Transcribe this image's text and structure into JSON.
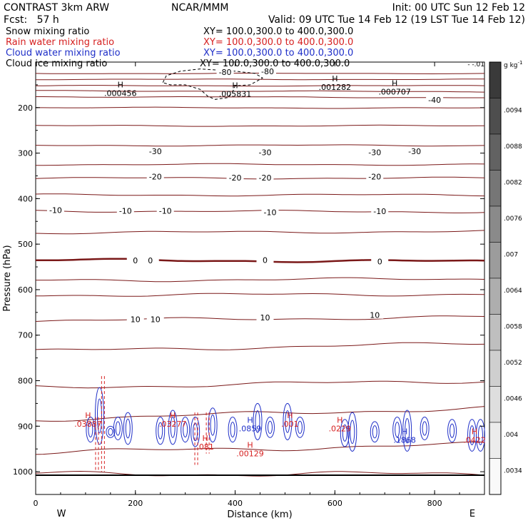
{
  "header": {
    "model": "CONTRAST  3km ARW",
    "org": "NCAR/MMM",
    "init": "Init: 00 UTC Sun 12 Feb 12",
    "fcst": "Fcst:   57 h",
    "valid": "Valid: 09 UTC Tue 14 Feb 12 (19 LST Tue 14 Feb 12)"
  },
  "fields": [
    {
      "name": "Snow mixing ratio",
      "xy": "XY= 100.0,300.0 to 400.0,300.0",
      "color": "#000000"
    },
    {
      "name": "Rain water mixing ratio",
      "xy": "XY= 100.0,300.0 to 400.0,300.0",
      "color": "#d62020"
    },
    {
      "name": "Cloud water mixing ratio",
      "xy": "XY= 100.0,300.0 to 400.0,300.0",
      "color": "#1f2fc8"
    },
    {
      "name": "Cloud ice mixing ratio",
      "xy": "XY= 100.0,300.0 to 400.0,300.0",
      "color": "#000000"
    }
  ],
  "colorbar": {
    "unit": "g kg",
    "unit_exp": "-1",
    "labels": [
      ".0094",
      ".0088",
      ".0082",
      ".0076",
      ".007",
      ".0064",
      ".0058",
      ".0052",
      ".0046",
      ".004",
      ".0034"
    ],
    "top_label": "- -.01",
    "grays": [
      "#3a3a3a",
      "#4e4e4e",
      "#626262",
      "#767676",
      "#8a8a8a",
      "#9c9c9c",
      "#aeaeae",
      "#bfbfbf",
      "#cfcfcf",
      "#dedede",
      "#ececec",
      "#f9f9f9"
    ]
  },
  "chart_data": {
    "type": "line",
    "xlabel": "Distance (km)",
    "ylabel": "Pressure (hPa)",
    "xlim": [
      0,
      900
    ],
    "ylim": [
      1050,
      100
    ],
    "x_ticks": [
      0,
      200,
      400,
      600,
      800
    ],
    "x_tick_labels": [
      "0",
      "200",
      "400",
      "600",
      "800"
    ],
    "y_ticks": [
      200,
      300,
      400,
      500,
      600,
      700,
      800,
      900,
      1000
    ],
    "y_tick_labels": [
      "200",
      "300",
      "400",
      "500",
      "600",
      "700",
      "800",
      "900",
      "1000"
    ],
    "direction_labels": {
      "left": "W",
      "right": "E"
    },
    "temperature_contours": [
      {
        "level": -80,
        "p": [
          125,
          125
        ]
      },
      {
        "level": -70,
        "p": [
          138,
          138
        ]
      },
      {
        "level": -60,
        "p": [
          152,
          152
        ]
      },
      {
        "level": -50,
        "p": [
          163,
          165
        ]
      },
      {
        "level": -40,
        "p": [
          176,
          178
        ]
      },
      {
        "level": -40,
        "p": [
          200,
          201
        ]
      },
      {
        "level": -30,
        "p": [
          240,
          240
        ]
      },
      {
        "level": -30,
        "p": [
          283,
          283
        ]
      },
      {
        "level": -20,
        "p": [
          325,
          325
        ]
      },
      {
        "level": -20,
        "p": [
          355,
          355
        ]
      },
      {
        "level": -10,
        "p": [
          392,
          392
        ]
      },
      {
        "level": -10,
        "p": [
          427,
          429
        ]
      },
      {
        "level": -10,
        "p": [
          475,
          472
        ]
      },
      {
        "level": 0,
        "p": [
          535,
          538
        ]
      },
      {
        "level": 0,
        "p": [
          580,
          576
        ]
      },
      {
        "level": 0,
        "p": [
          612,
          610
        ]
      },
      {
        "level": 10,
        "p": [
          668,
          660
        ]
      },
      {
        "level": 10,
        "p": [
          735,
          718
        ]
      },
      {
        "level": 10,
        "p": [
          815,
          800
        ]
      },
      {
        "level": 20,
        "p": [
          885,
          860
        ]
      },
      {
        "level": 20,
        "p": [
          958,
          940
        ]
      },
      {
        "level": 30,
        "p": [
          1005,
          1005
        ]
      }
    ],
    "contour_labels": [
      {
        "text": "-80",
        "x": 380,
        "p": 122
      },
      {
        "text": "-80",
        "x": 465,
        "p": 120
      },
      {
        "text": "-40",
        "x": 800,
        "p": 183
      },
      {
        "text": "-30",
        "x": 240,
        "p": 296
      },
      {
        "text": "-30",
        "x": 460,
        "p": 298
      },
      {
        "text": "-30",
        "x": 680,
        "p": 298
      },
      {
        "text": "-30",
        "x": 760,
        "p": 296
      },
      {
        "text": "-20",
        "x": 240,
        "p": 352
      },
      {
        "text": "-20",
        "x": 400,
        "p": 354
      },
      {
        "text": "-20",
        "x": 460,
        "p": 354
      },
      {
        "text": "-20",
        "x": 680,
        "p": 352
      },
      {
        "text": "-10",
        "x": 40,
        "p": 425
      },
      {
        "text": "-10",
        "x": 180,
        "p": 427
      },
      {
        "text": "-10",
        "x": 260,
        "p": 427
      },
      {
        "text": "-10",
        "x": 470,
        "p": 430
      },
      {
        "text": "-10",
        "x": 690,
        "p": 428
      },
      {
        "text": "0",
        "x": 200,
        "p": 536
      },
      {
        "text": "0",
        "x": 230,
        "p": 536
      },
      {
        "text": "0",
        "x": 460,
        "p": 535
      },
      {
        "text": "0",
        "x": 690,
        "p": 538
      },
      {
        "text": "10",
        "x": 200,
        "p": 665
      },
      {
        "text": "10",
        "x": 240,
        "p": 665
      },
      {
        "text": "10",
        "x": 460,
        "p": 661
      },
      {
        "text": "10",
        "x": 680,
        "p": 656
      }
    ],
    "extrema": [
      {
        "marker": "H",
        "value": ".000456",
        "x": 170,
        "p": 168,
        "color": "#000000"
      },
      {
        "marker": "H",
        "value": ".005831",
        "x": 400,
        "p": 170,
        "color": "#000000"
      },
      {
        "marker": "H",
        "value": ".001282",
        "x": 600,
        "p": 155,
        "color": "#000000"
      },
      {
        "marker": "H",
        "value": ".000707",
        "x": 720,
        "p": 165,
        "color": "#000000"
      },
      {
        "marker": "H",
        "value": ".03887",
        "x": 105,
        "p": 895,
        "color": "#d62020"
      },
      {
        "marker": "H",
        "value": ".03277",
        "x": 275,
        "p": 895,
        "color": "#d62020"
      },
      {
        "marker": "H",
        "value": ".081",
        "x": 340,
        "p": 945,
        "color": "#d62020"
      },
      {
        "marker": "H",
        "value": ".00129",
        "x": 430,
        "p": 960,
        "color": "#d62020"
      },
      {
        "marker": "H",
        "value": ".0859",
        "x": 430,
        "p": 905,
        "color": "#1f2fc8"
      },
      {
        "marker": "H",
        "value": ".001",
        "x": 510,
        "p": 895,
        "color": "#d62020"
      },
      {
        "marker": "H",
        "value": ".0229",
        "x": 610,
        "p": 905,
        "color": "#d62020"
      },
      {
        "marker": "H",
        "value": ".1868",
        "x": 740,
        "p": 930,
        "color": "#1f2fc8"
      },
      {
        "marker": "H",
        "value": ".0422",
        "x": 880,
        "p": 930,
        "color": "#d62020"
      }
    ],
    "cloud_water_towers": [
      {
        "x": 110,
        "top": 880,
        "bottom": 935
      },
      {
        "x": 128,
        "top": 815,
        "bottom": 940
      },
      {
        "x": 150,
        "top": 900,
        "bottom": 925
      },
      {
        "x": 165,
        "top": 880,
        "bottom": 930
      },
      {
        "x": 185,
        "top": 870,
        "bottom": 940
      },
      {
        "x": 250,
        "top": 880,
        "bottom": 940
      },
      {
        "x": 275,
        "top": 865,
        "bottom": 940
      },
      {
        "x": 300,
        "top": 880,
        "bottom": 935
      },
      {
        "x": 320,
        "top": 880,
        "bottom": 945
      },
      {
        "x": 355,
        "top": 860,
        "bottom": 935
      },
      {
        "x": 395,
        "top": 880,
        "bottom": 935
      },
      {
        "x": 445,
        "top": 850,
        "bottom": 930
      },
      {
        "x": 470,
        "top": 880,
        "bottom": 925
      },
      {
        "x": 505,
        "top": 850,
        "bottom": 930
      },
      {
        "x": 530,
        "top": 880,
        "bottom": 925
      },
      {
        "x": 620,
        "top": 885,
        "bottom": 945
      },
      {
        "x": 635,
        "top": 870,
        "bottom": 955
      },
      {
        "x": 680,
        "top": 890,
        "bottom": 935
      },
      {
        "x": 725,
        "top": 880,
        "bottom": 935
      },
      {
        "x": 745,
        "top": 865,
        "bottom": 955
      },
      {
        "x": 780,
        "top": 880,
        "bottom": 930
      },
      {
        "x": 835,
        "top": 885,
        "bottom": 935
      },
      {
        "x": 875,
        "top": 885,
        "bottom": 955
      },
      {
        "x": 892,
        "top": 885,
        "bottom": 955
      }
    ],
    "rain_shafts": [
      {
        "x": 123,
        "top": 880,
        "bottom": 1000
      },
      {
        "x": 135,
        "top": 790,
        "bottom": 1000
      },
      {
        "x": 322,
        "top": 870,
        "bottom": 985
      },
      {
        "x": 345,
        "top": 870,
        "bottom": 960
      }
    ],
    "cloud_ice_outline": [
      [
        255,
        145
      ],
      [
        262,
        130
      ],
      [
        290,
        120
      ],
      [
        330,
        115
      ],
      [
        370,
        118
      ],
      [
        400,
        120
      ],
      [
        440,
        125
      ],
      [
        455,
        135
      ],
      [
        430,
        150
      ],
      [
        400,
        152
      ],
      [
        395,
        165
      ],
      [
        385,
        178
      ],
      [
        360,
        182
      ],
      [
        345,
        175
      ],
      [
        330,
        160
      ],
      [
        300,
        150
      ],
      [
        270,
        150
      ],
      [
        255,
        145
      ]
    ]
  }
}
